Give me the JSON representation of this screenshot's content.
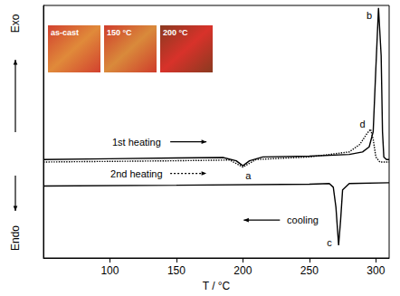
{
  "chart_data": {
    "type": "line",
    "xlabel": "T / °C",
    "ylabels": {
      "top": "Exo",
      "bottom": "Endo"
    },
    "xlim": [
      50,
      310
    ],
    "xticks": [
      100,
      150,
      200,
      250,
      300
    ],
    "ylim": [
      0,
      100
    ],
    "tick_labels": "x",
    "grid": false,
    "series": [
      {
        "name": "1st heating",
        "color": "#000000",
        "line_style": "solid",
        "x": [
          50,
          100,
          150,
          185,
          195,
          200,
          205,
          215,
          250,
          280,
          290,
          295,
          298,
          300,
          302,
          304,
          305,
          306,
          308,
          310
        ],
        "values": [
          39,
          39.3,
          39.6,
          39.8,
          38.5,
          36.5,
          38.5,
          40,
          40.3,
          41,
          42,
          44,
          50,
          75,
          99,
          80,
          50,
          40,
          39,
          39
        ]
      },
      {
        "name": "2nd heating",
        "color": "#000000",
        "line_style": "dotted",
        "x": [
          50,
          150,
          190,
          200,
          210,
          250,
          280,
          288,
          293,
          296,
          298,
          300,
          303,
          310
        ],
        "values": [
          38,
          38.5,
          38.8,
          36,
          39,
          40,
          42,
          45,
          49,
          51,
          47,
          40,
          38,
          38
        ]
      },
      {
        "name": "cooling",
        "color": "#000000",
        "line_style": "solid",
        "x": [
          50,
          150,
          250,
          265,
          268,
          270,
          272,
          273.5,
          275,
          280,
          310
        ],
        "values": [
          28.5,
          28.8,
          29.2,
          29.5,
          28,
          20,
          5,
          15,
          27,
          29.5,
          29.8
        ]
      }
    ],
    "annotations": [
      {
        "text": "1st heating",
        "x": 120,
        "y": 46,
        "arrow": "right",
        "line_style": "solid"
      },
      {
        "text": "2nd heating",
        "x": 120,
        "y": 33.5,
        "arrow": "right",
        "line_style": "dotted"
      },
      {
        "text": "cooling",
        "x": 245,
        "y": 15,
        "arrow": "left",
        "line_style": "solid"
      },
      {
        "text": "a",
        "x": 204,
        "y": 32.5
      },
      {
        "text": "b",
        "x": 295,
        "y": 96
      },
      {
        "text": "c",
        "x": 265,
        "y": 6
      },
      {
        "text": "d",
        "x": 290,
        "y": 53
      }
    ],
    "insets": [
      "as-cast",
      "150 °C",
      "200 °C"
    ]
  }
}
